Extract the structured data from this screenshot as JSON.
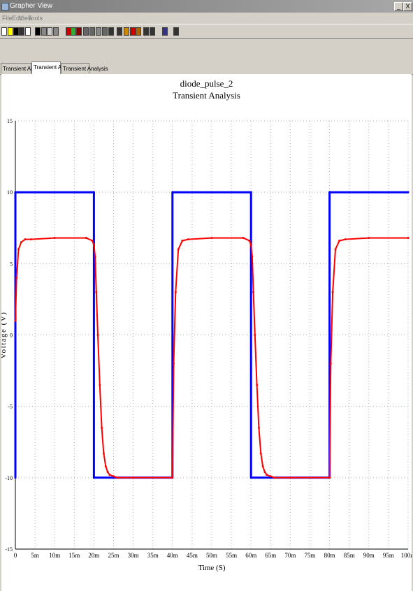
{
  "window": {
    "title": "Grapher View",
    "minimize": "_",
    "restore": "ð",
    "close": "X"
  },
  "menu": [
    "File",
    "Edit",
    "View",
    "Tools"
  ],
  "toolbar_icons": [
    "new-icon",
    "open-icon",
    "save-icon",
    "print-icon",
    "print-preview-icon",
    "cut-icon",
    "copy-icon",
    "paste-icon",
    "undo-icon",
    "grid-icon",
    "legend-icon",
    "cursor-icon",
    "zoom-in-icon",
    "zoom-out-icon",
    "zoom-area-icon",
    "zoom-fit-icon",
    "pan-icon",
    "properties-icon",
    "color-icon",
    "export-icon",
    "overlay-icon",
    "reverse-colors-icon",
    "select-trace-icon",
    "dark-bg-icon",
    "light-bg-icon"
  ],
  "tabs": [
    "Transient Analysis",
    "Transient Analysis",
    "Transient Analysis"
  ],
  "active_tab": 1,
  "chart_data": {
    "type": "line",
    "title": "diode_pulse_2",
    "subtitle": "Transient Analysis",
    "xlabel": "Time (S)",
    "ylabel": "Voltage (V)",
    "xlim": [
      0,
      100
    ],
    "ylim": [
      -15,
      15
    ],
    "grid": true,
    "x_ticks": [
      "0",
      "5m",
      "10m",
      "15m",
      "20m",
      "25m",
      "30m",
      "35m",
      "40m",
      "45m",
      "50m",
      "55m",
      "60m",
      "65m",
      "70m",
      "75m",
      "80m",
      "85m",
      "90m",
      "95m",
      "100m"
    ],
    "y_ticks": [
      "15",
      "10",
      "5",
      "0",
      "-5",
      "-10",
      "-15"
    ],
    "series": [
      {
        "color": "#0000ff",
        "x": [
          0,
          0,
          20,
          20,
          40,
          40,
          60,
          60,
          80,
          80,
          100
        ],
        "y": [
          -10,
          10,
          10,
          -10,
          -10,
          10,
          10,
          -10,
          -10,
          10,
          10
        ]
      },
      {
        "color": "#ff0000",
        "x": [
          0,
          0.3,
          0.8,
          1.5,
          2.5,
          4,
          10,
          18,
          19.6,
          20,
          20.3,
          20.6,
          21,
          21.5,
          22,
          22.5,
          23,
          23.5,
          24,
          25,
          26,
          30,
          40,
          40.3,
          40.8,
          41.5,
          42.5,
          44,
          50,
          58,
          59.6,
          60,
          60.3,
          60.6,
          61,
          61.5,
          62,
          62.5,
          63,
          63.5,
          64,
          65,
          66,
          70,
          80,
          80.3,
          80.8,
          81.5,
          82.5,
          84,
          90,
          100
        ],
        "y": [
          1,
          4,
          6,
          6.5,
          6.7,
          6.7,
          6.8,
          6.8,
          6.6,
          6.3,
          5.5,
          3,
          0,
          -3.5,
          -6.5,
          -8.3,
          -9.2,
          -9.6,
          -9.8,
          -9.9,
          -10,
          -10,
          -10,
          -2,
          3,
          6,
          6.6,
          6.7,
          6.8,
          6.8,
          6.6,
          6.3,
          5.5,
          3,
          0,
          -3.5,
          -6.5,
          -8.3,
          -9.2,
          -9.6,
          -9.8,
          -9.9,
          -10,
          -10,
          -10,
          -2,
          3,
          6,
          6.6,
          6.7,
          6.8,
          6.8
        ]
      }
    ]
  }
}
